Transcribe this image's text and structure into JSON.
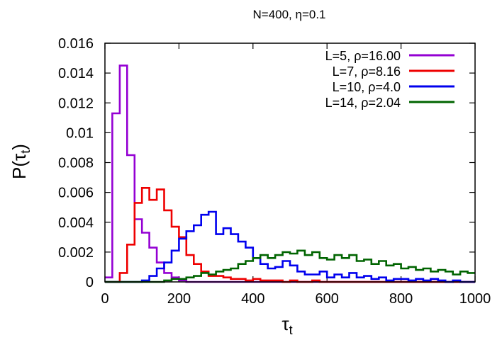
{
  "chart_data": {
    "type": "line",
    "title": "N=400, η=0.1",
    "xlabel": {
      "main": "τ",
      "sub": "t"
    },
    "ylabel": {
      "prefix": "P(",
      "main": "τ",
      "sub": "t",
      "suffix": ")"
    },
    "xlim": [
      0,
      1000
    ],
    "ylim": [
      0,
      0.016
    ],
    "xticks": [
      0,
      200,
      400,
      600,
      800,
      1000
    ],
    "xtick_labels": [
      "0",
      "200",
      "400",
      "600",
      "800",
      "1000"
    ],
    "yticks": [
      0,
      0.002,
      0.004,
      0.006,
      0.008,
      0.01,
      0.012,
      0.014,
      0.016
    ],
    "ytick_labels": [
      "0",
      "0.002",
      "0.004",
      "0.006",
      "0.008",
      "0.01",
      "0.012",
      "0.014",
      "0.016"
    ],
    "legend_position": "top-right",
    "bin_width": 20,
    "series": [
      {
        "name": "L=5, ρ=16.00",
        "color": "#9400d3",
        "values": [
          0.0003,
          0.0113,
          0.0145,
          0.0085,
          0.0042,
          0.0033,
          0.0023,
          0.0013,
          0.0006,
          0.0003,
          0.0001,
          0.0,
          0.0,
          0.0,
          0.0,
          0.0,
          0.0,
          0.0,
          0.0,
          0.0,
          0.0,
          0.0,
          0.0,
          0.0,
          0.0,
          0.0,
          0.0,
          0.0,
          0.0,
          0.0,
          0.0,
          0.0,
          0.0,
          0.0,
          0.0,
          0.0,
          0.0,
          0.0,
          0.0,
          0.0,
          0.0,
          0.0,
          0.0,
          0.0,
          0.0,
          0.0,
          0.0,
          0.0,
          0.0,
          0.0
        ]
      },
      {
        "name": "L=7, ρ=8.16",
        "color": "#ee0000",
        "values": [
          0.0,
          0.0,
          0.0006,
          0.0025,
          0.0053,
          0.0063,
          0.0055,
          0.0062,
          0.0048,
          0.0037,
          0.003,
          0.0018,
          0.0012,
          0.0007,
          0.0004,
          0.0004,
          0.0003,
          0.0002,
          0.0002,
          0.0001,
          0.0002,
          0.0001,
          0.0001,
          0.0001,
          0.0,
          0.0001,
          0.0,
          0.0,
          0.0001,
          0.0,
          0.0,
          0.0,
          0.0,
          0.0,
          0.0,
          0.0,
          0.0,
          0.0,
          0.0,
          0.0,
          0.0,
          0.0,
          0.0,
          0.0,
          0.0,
          0.0,
          0.0,
          0.0,
          0.0,
          0.0
        ]
      },
      {
        "name": "L=10, ρ=4.0",
        "color": "#0000ee",
        "values": [
          0.0,
          0.0,
          0.0,
          0.0,
          0.0,
          0.0001,
          0.0004,
          0.0009,
          0.0013,
          0.0021,
          0.0029,
          0.0034,
          0.0038,
          0.0045,
          0.0047,
          0.0032,
          0.0036,
          0.0032,
          0.0027,
          0.0023,
          0.0016,
          0.0012,
          0.0009,
          0.001,
          0.0014,
          0.0011,
          0.0007,
          0.0005,
          0.0005,
          0.0007,
          0.0003,
          0.0005,
          0.0003,
          0.0006,
          0.0003,
          0.0004,
          0.0002,
          0.0003,
          0.0001,
          0.0002,
          0.0002,
          0.0001,
          0.0002,
          0.0001,
          0.0002,
          0.0001,
          0.0,
          0.0001,
          0.0,
          0.0
        ]
      },
      {
        "name": "L=14, ρ=2.04",
        "color": "#006400",
        "values": [
          0.0,
          0.0,
          0.0,
          0.0,
          0.0,
          0.0,
          0.0,
          0.0,
          0.0001,
          0.0002,
          0.0002,
          0.0003,
          0.0004,
          0.0006,
          0.0005,
          0.0007,
          0.0008,
          0.0009,
          0.0012,
          0.0014,
          0.0016,
          0.0018,
          0.0016,
          0.0018,
          0.002,
          0.0019,
          0.0021,
          0.0018,
          0.002,
          0.0016,
          0.0015,
          0.0018,
          0.0016,
          0.0018,
          0.0014,
          0.0015,
          0.0012,
          0.0014,
          0.0011,
          0.0012,
          0.0009,
          0.001,
          0.0008,
          0.0009,
          0.0007,
          0.0008,
          0.0007,
          0.0005,
          0.0007,
          0.0006
        ]
      }
    ]
  }
}
